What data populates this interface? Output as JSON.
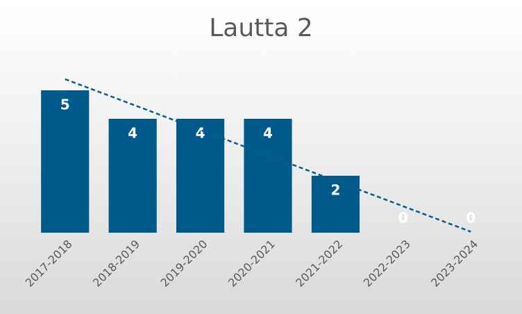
{
  "chart_data": {
    "type": "bar",
    "title": "Lautta 2",
    "categories": [
      "2017-2018",
      "2018-2019",
      "2019-2020",
      "2020-2021",
      "2021-2022",
      "2022-2023",
      "2023-2024"
    ],
    "values": [
      5,
      4,
      4,
      4,
      2,
      0,
      0
    ],
    "color": "#005a8c",
    "ylim": [
      0,
      6
    ],
    "trendline": "linear",
    "trendline_color": "#0b5a8c",
    "data_labels": true
  }
}
